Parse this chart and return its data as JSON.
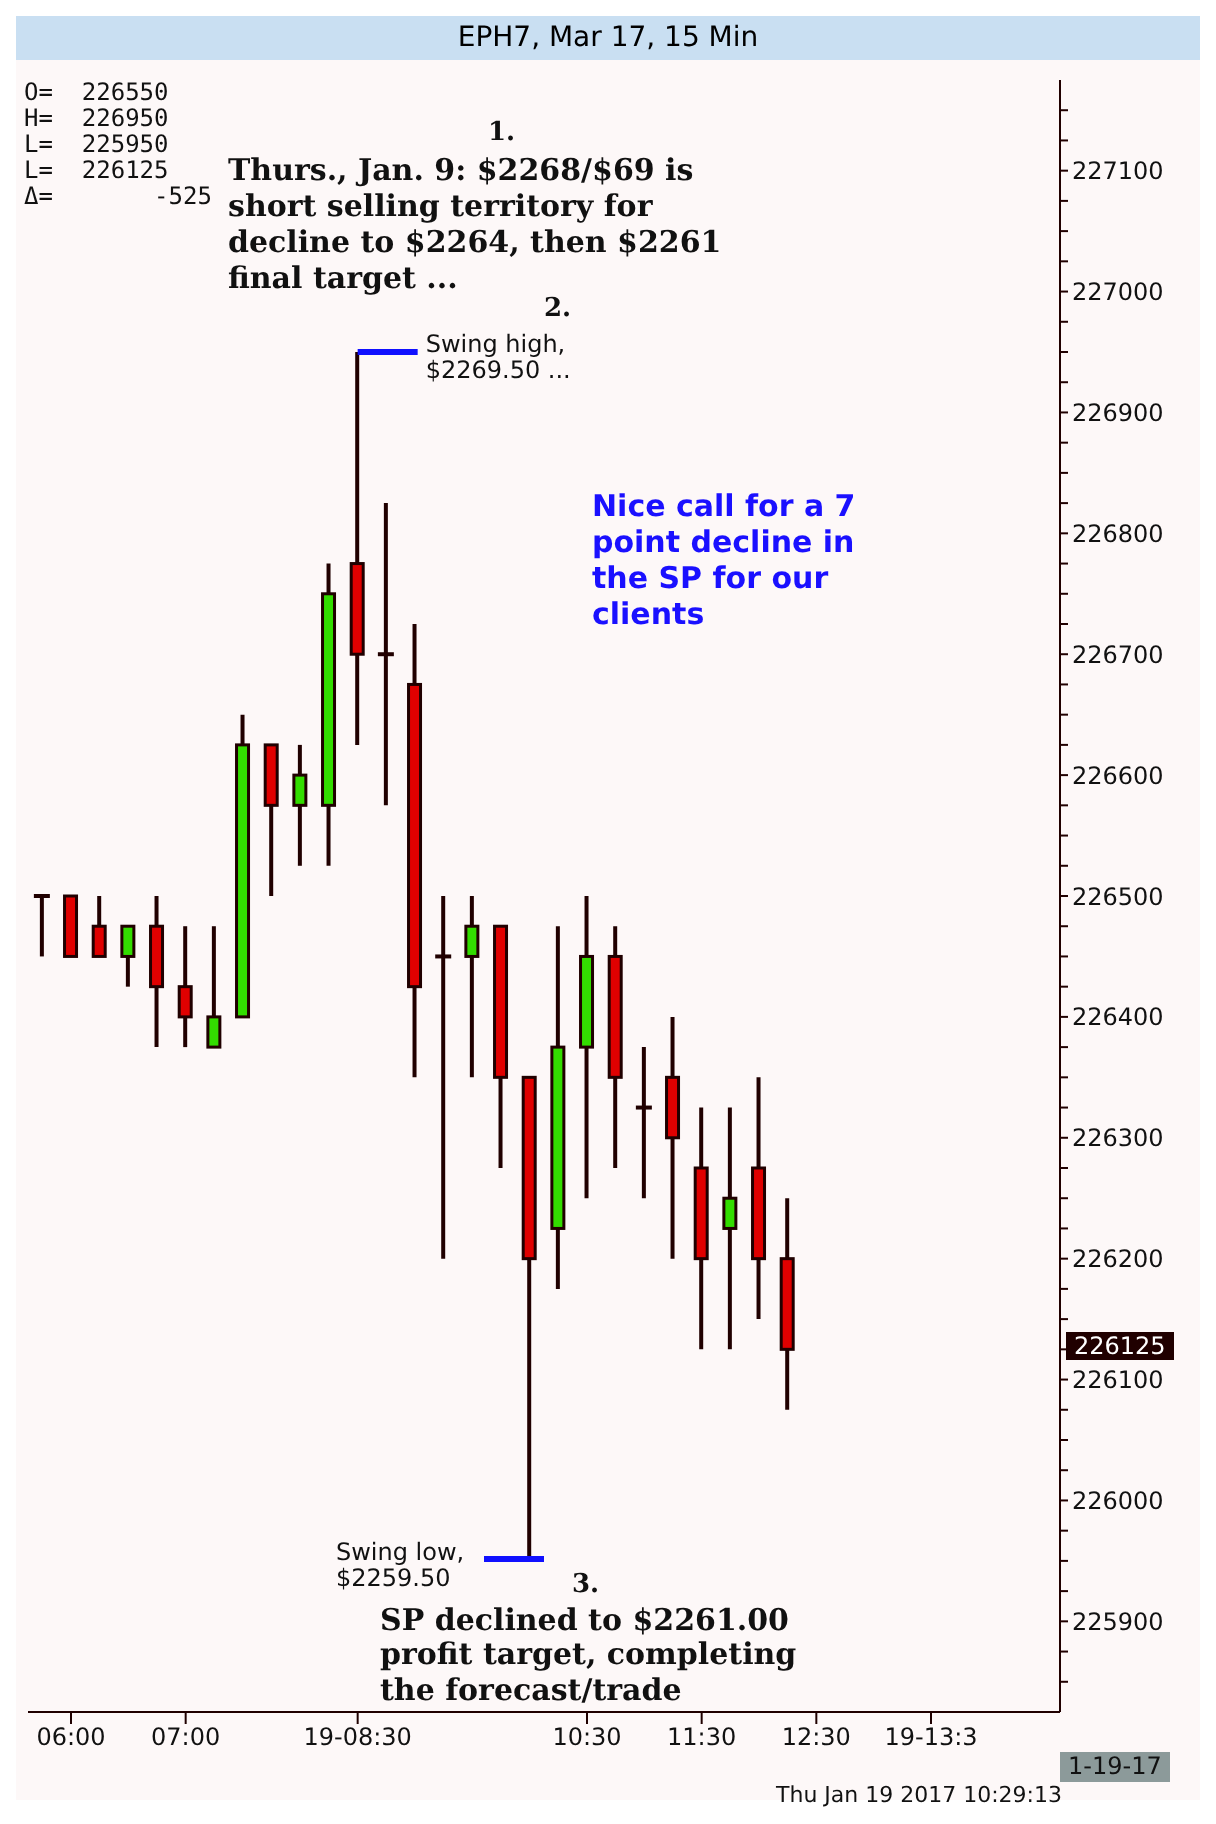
{
  "chart_data": {
    "type": "candlestick",
    "title": "EPH7, Mar 17, 15 Min",
    "categories": [
      null,
      "06:00",
      null,
      null,
      null,
      "07:00",
      null,
      null,
      null,
      null,
      null,
      "19-08:30",
      null,
      null,
      null,
      null,
      null,
      null,
      null,
      "10:30",
      null,
      null,
      null,
      "11:30",
      null,
      null,
      null,
      "12:30",
      null,
      null,
      null,
      "19-13:3",
      null,
      null,
      null,
      null
    ],
    "ohlc": [
      [
        226500,
        226500,
        226450,
        226500
      ],
      [
        226500,
        226500,
        226450,
        226450
      ],
      [
        226475,
        226500,
        226450,
        226450
      ],
      [
        226450,
        226475,
        226425,
        226475
      ],
      [
        226475,
        226500,
        226375,
        226425
      ],
      [
        226425,
        226475,
        226375,
        226400
      ],
      [
        226375,
        226475,
        226375,
        226400
      ],
      [
        226400,
        226650,
        226400,
        226625
      ],
      [
        226625,
        226625,
        226500,
        226575
      ],
      [
        226575,
        226625,
        226525,
        226600
      ],
      [
        226575,
        226775,
        226525,
        226750
      ],
      [
        226775,
        226950,
        226625,
        226700
      ],
      [
        226700,
        226825,
        226575,
        226700
      ],
      [
        226675,
        226725,
        226350,
        226425
      ],
      [
        226450,
        226500,
        226200,
        226450
      ],
      [
        226450,
        226500,
        226350,
        226475
      ],
      [
        226475,
        226475,
        226275,
        226350
      ],
      [
        226350,
        226350,
        225950,
        226200
      ],
      [
        226225,
        226475,
        226175,
        226375
      ],
      [
        226375,
        226500,
        226250,
        226450
      ],
      [
        226450,
        226475,
        226275,
        226350
      ],
      [
        226325,
        226375,
        226250,
        226325
      ],
      [
        226350,
        226400,
        226200,
        226300
      ],
      [
        226275,
        226325,
        226125,
        226200
      ],
      [
        226225,
        226325,
        226125,
        226250
      ],
      [
        226275,
        226350,
        226150,
        226200
      ],
      [
        226200,
        226250,
        226075,
        226125
      ],
      null,
      null,
      null,
      null,
      null,
      null,
      null,
      null,
      null
    ],
    "colors": [
      null,
      "#e00000",
      "#e00000",
      "#33dd00",
      "#e00000",
      "#e00000",
      "#33dd00",
      "#33dd00",
      "#e00000",
      "#33dd00",
      "#33dd00",
      "#e00000",
      null,
      "#e00000",
      null,
      "#33dd00",
      "#e00000",
      "#e00000",
      "#33dd00",
      "#33dd00",
      "#e00000",
      null,
      "#e00000",
      "#e00000",
      "#33dd00",
      "#e00000",
      "#e00000",
      null,
      null,
      null,
      null,
      null,
      null,
      null,
      null,
      null
    ],
    "ylim": [
      225825,
      227175
    ],
    "yticks": [
      {
        "value": 225850,
        "label": null
      },
      {
        "value": 225875,
        "label": null
      },
      225900,
      {
        "value": 225925,
        "label": null
      },
      {
        "value": 225950,
        "label": null
      },
      {
        "value": 225975,
        "label": null
      },
      226000,
      {
        "value": 226025,
        "label": null
      },
      {
        "value": 226050,
        "label": null
      },
      {
        "value": 226075,
        "label": null
      },
      226100,
      {
        "value": 226125,
        "label": null
      },
      {
        "value": 226150,
        "label": null
      },
      {
        "value": 226175,
        "label": null
      },
      226200,
      {
        "value": 226225,
        "label": null
      },
      {
        "value": 226250,
        "label": null
      },
      {
        "value": 226275,
        "label": null
      },
      226300,
      {
        "value": 226325,
        "label": null
      },
      {
        "value": 226350,
        "label": null
      },
      {
        "value": 226375,
        "label": null
      },
      226400,
      {
        "value": 226425,
        "label": null
      },
      {
        "value": 226450,
        "label": null
      },
      {
        "value": 226475,
        "label": null
      },
      226500,
      {
        "value": 226525,
        "label": null
      },
      {
        "value": 226550,
        "label": null
      },
      {
        "value": 226575,
        "label": null
      },
      226600,
      {
        "value": 226625,
        "label": null
      },
      {
        "value": 226650,
        "label": null
      },
      {
        "value": 226675,
        "label": null
      },
      226700,
      {
        "value": 226725,
        "label": null
      },
      {
        "value": 226750,
        "label": null
      },
      {
        "value": 226775,
        "label": null
      },
      226800,
      {
        "value": 226825,
        "label": null
      },
      {
        "value": 226850,
        "label": null
      },
      {
        "value": 226875,
        "label": null
      },
      226900,
      {
        "value": 226925,
        "label": null
      },
      {
        "value": 226950,
        "label": null
      },
      {
        "value": 226975,
        "label": null
      },
      227000,
      {
        "value": 227025,
        "label": null
      },
      {
        "value": 227050,
        "label": null
      },
      {
        "value": 227075,
        "label": null
      },
      227100,
      {
        "value": 227125,
        "label": null
      },
      {
        "value": 227150,
        "label": null
      }
    ],
    "annotations": [
      "O=  226550",
      "H=  226950",
      "L=  225950",
      "L=  226125",
      "Δ=       -525",
      "1.",
      "Thurs., Jan. 9: $2268/$69 is short selling territory for decline to $2264, then $2261 final target ...",
      "2.",
      "Nice call for a 7 point decline in the SP for our clients",
      "3.",
      "SP declined to $2261.00 profit target, completing the forecast/trade",
      "1-19-17",
      "Thu Jan 19 2017 10:29:13",
      "Swing low, $2259.50",
      "226125",
      {
        "text": "Swing high, $2269.50 ...",
        "x": "19-08:30",
        "y": 226950
      }
    ]
  }
}
